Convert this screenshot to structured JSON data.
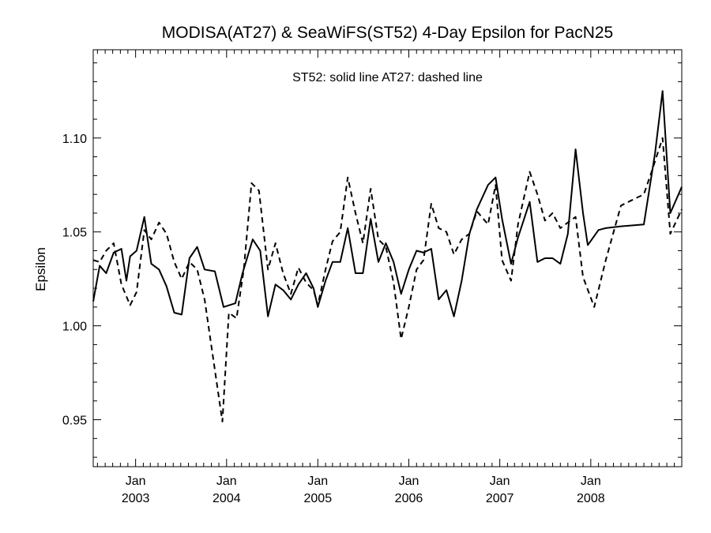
{
  "chart_data": {
    "type": "line",
    "title": "MODISA(AT27) & SeaWiFS(ST52) 4-Day Epsilon for PacN25",
    "annotation": "ST52: solid line   AT27: dashed line",
    "xlabel": "",
    "ylabel": "Epsilon",
    "xlim": [
      "2002-07-15",
      "2008-12-31"
    ],
    "ylim": [
      0.925,
      1.147
    ],
    "y_ticks": [
      0.95,
      1.0,
      1.05,
      1.1
    ],
    "y_tick_labels": [
      "0.95",
      "1.00",
      "1.05",
      "1.10"
    ],
    "x_ticks": [
      "2003-01-01",
      "2004-01-01",
      "2005-01-01",
      "2006-01-01",
      "2007-01-01",
      "2008-01-01"
    ],
    "x_tick_labels": [
      [
        "Jan",
        "2003"
      ],
      [
        "Jan",
        "2004"
      ],
      [
        "Jan",
        "2005"
      ],
      [
        "Jan",
        "2006"
      ],
      [
        "Jan",
        "2007"
      ],
      [
        "Jan",
        "2008"
      ]
    ],
    "grid": false,
    "series": [
      {
        "name": "ST52",
        "style": "solid",
        "color": "#000000",
        "points": [
          [
            "2002-07-15",
            1.013
          ],
          [
            "2002-08-10",
            1.032
          ],
          [
            "2002-09-05",
            1.028
          ],
          [
            "2002-10-05",
            1.039
          ],
          [
            "2002-11-05",
            1.041
          ],
          [
            "2002-11-25",
            1.024
          ],
          [
            "2002-12-10",
            1.037
          ],
          [
            "2003-01-05",
            1.04
          ],
          [
            "2003-02-05",
            1.058
          ],
          [
            "2003-03-05",
            1.033
          ],
          [
            "2003-04-05",
            1.03
          ],
          [
            "2003-05-05",
            1.021
          ],
          [
            "2003-06-05",
            1.007
          ],
          [
            "2003-07-05",
            1.006
          ],
          [
            "2003-08-05",
            1.036
          ],
          [
            "2003-09-05",
            1.042
          ],
          [
            "2003-10-05",
            1.03
          ],
          [
            "2003-11-15",
            1.029
          ],
          [
            "2003-12-20",
            1.01
          ],
          [
            "2004-02-05",
            1.012
          ],
          [
            "2004-03-05",
            1.028
          ],
          [
            "2004-04-15",
            1.046
          ],
          [
            "2004-05-15",
            1.04
          ],
          [
            "2004-06-15",
            1.005
          ],
          [
            "2004-07-15",
            1.022
          ],
          [
            "2004-08-15",
            1.019
          ],
          [
            "2004-09-15",
            1.014
          ],
          [
            "2004-10-15",
            1.022
          ],
          [
            "2004-11-15",
            1.028
          ],
          [
            "2004-12-15",
            1.02
          ],
          [
            "2005-01-01",
            1.01
          ],
          [
            "2005-02-01",
            1.024
          ],
          [
            "2005-03-01",
            1.034
          ],
          [
            "2005-04-01",
            1.034
          ],
          [
            "2005-05-01",
            1.052
          ],
          [
            "2005-06-01",
            1.028
          ],
          [
            "2005-07-01",
            1.028
          ],
          [
            "2005-08-01",
            1.057
          ],
          [
            "2005-09-01",
            1.034
          ],
          [
            "2005-10-01",
            1.044
          ],
          [
            "2005-11-01",
            1.034
          ],
          [
            "2005-12-01",
            1.017
          ],
          [
            "2006-01-01",
            1.03
          ],
          [
            "2006-02-01",
            1.04
          ],
          [
            "2006-03-01",
            1.039
          ],
          [
            "2006-04-01",
            1.041
          ],
          [
            "2006-05-01",
            1.014
          ],
          [
            "2006-06-01",
            1.019
          ],
          [
            "2006-07-01",
            1.005
          ],
          [
            "2006-08-01",
            1.024
          ],
          [
            "2006-09-01",
            1.049
          ],
          [
            "2006-10-01",
            1.062
          ],
          [
            "2006-11-15",
            1.075
          ],
          [
            "2006-12-15",
            1.079
          ],
          [
            "2007-01-10",
            1.057
          ],
          [
            "2007-02-15",
            1.033
          ],
          [
            "2007-03-15",
            1.047
          ],
          [
            "2007-05-01",
            1.066
          ],
          [
            "2007-06-01",
            1.034
          ],
          [
            "2007-07-01",
            1.036
          ],
          [
            "2007-08-01",
            1.036
          ],
          [
            "2007-09-01",
            1.033
          ],
          [
            "2007-10-01",
            1.049
          ],
          [
            "2007-11-01",
            1.094
          ],
          [
            "2007-12-01",
            1.06
          ],
          [
            "2007-12-20",
            1.043
          ],
          [
            "2008-02-01",
            1.051
          ],
          [
            "2008-03-01",
            1.052
          ],
          [
            "2008-05-01",
            1.053
          ],
          [
            "2008-08-01",
            1.054
          ],
          [
            "2008-09-15",
            1.092
          ],
          [
            "2008-10-15",
            1.125
          ],
          [
            "2008-11-15",
            1.06
          ],
          [
            "2008-12-31",
            1.074
          ]
        ]
      },
      {
        "name": "AT27",
        "style": "dashed",
        "color": "#000000",
        "points": [
          [
            "2002-07-15",
            1.035
          ],
          [
            "2002-08-10",
            1.034
          ],
          [
            "2002-09-05",
            1.04
          ],
          [
            "2002-10-05",
            1.044
          ],
          [
            "2002-11-05",
            1.022
          ],
          [
            "2002-12-10",
            1.011
          ],
          [
            "2003-01-05",
            1.018
          ],
          [
            "2003-02-05",
            1.051
          ],
          [
            "2003-03-05",
            1.046
          ],
          [
            "2003-04-05",
            1.055
          ],
          [
            "2003-05-05",
            1.049
          ],
          [
            "2003-06-05",
            1.034
          ],
          [
            "2003-07-05",
            1.025
          ],
          [
            "2003-08-05",
            1.034
          ],
          [
            "2003-09-05",
            1.03
          ],
          [
            "2003-10-05",
            1.014
          ],
          [
            "2003-12-15",
            0.949
          ],
          [
            "2004-01-10",
            1.007
          ],
          [
            "2004-02-10",
            1.004
          ],
          [
            "2004-03-10",
            1.03
          ],
          [
            "2004-04-10",
            1.076
          ],
          [
            "2004-05-10",
            1.072
          ],
          [
            "2004-06-15",
            1.03
          ],
          [
            "2004-07-15",
            1.044
          ],
          [
            "2004-08-15",
            1.028
          ],
          [
            "2004-09-15",
            1.017
          ],
          [
            "2004-10-15",
            1.031
          ],
          [
            "2004-11-15",
            1.023
          ],
          [
            "2004-12-15",
            1.019
          ],
          [
            "2005-01-01",
            1.011
          ],
          [
            "2005-02-01",
            1.03
          ],
          [
            "2005-03-01",
            1.045
          ],
          [
            "2005-04-01",
            1.05
          ],
          [
            "2005-05-01",
            1.079
          ],
          [
            "2005-06-01",
            1.06
          ],
          [
            "2005-07-01",
            1.044
          ],
          [
            "2005-08-01",
            1.073
          ],
          [
            "2005-09-01",
            1.046
          ],
          [
            "2005-10-01",
            1.042
          ],
          [
            "2005-11-01",
            1.023
          ],
          [
            "2005-12-01",
            0.993
          ],
          [
            "2006-01-01",
            1.01
          ],
          [
            "2006-02-01",
            1.03
          ],
          [
            "2006-03-01",
            1.035
          ],
          [
            "2006-04-01",
            1.065
          ],
          [
            "2006-05-01",
            1.052
          ],
          [
            "2006-06-01",
            1.05
          ],
          [
            "2006-07-01",
            1.038
          ],
          [
            "2006-08-01",
            1.046
          ],
          [
            "2006-09-01",
            1.049
          ],
          [
            "2006-10-01",
            1.061
          ],
          [
            "2006-11-15",
            1.054
          ],
          [
            "2006-12-15",
            1.075
          ],
          [
            "2007-01-10",
            1.035
          ],
          [
            "2007-02-15",
            1.024
          ],
          [
            "2007-03-15",
            1.054
          ],
          [
            "2007-05-01",
            1.082
          ],
          [
            "2007-06-01",
            1.07
          ],
          [
            "2007-07-01",
            1.056
          ],
          [
            "2007-08-01",
            1.06
          ],
          [
            "2007-09-01",
            1.052
          ],
          [
            "2007-10-01",
            1.055
          ],
          [
            "2007-11-01",
            1.058
          ],
          [
            "2007-12-01",
            1.026
          ],
          [
            "2008-01-15",
            1.01
          ],
          [
            "2008-03-01",
            1.035
          ],
          [
            "2008-05-01",
            1.064
          ],
          [
            "2008-06-15",
            1.067
          ],
          [
            "2008-08-01",
            1.07
          ],
          [
            "2008-09-01",
            1.082
          ],
          [
            "2008-10-15",
            1.1
          ],
          [
            "2008-11-15",
            1.049
          ],
          [
            "2008-12-31",
            1.062
          ]
        ]
      }
    ]
  }
}
